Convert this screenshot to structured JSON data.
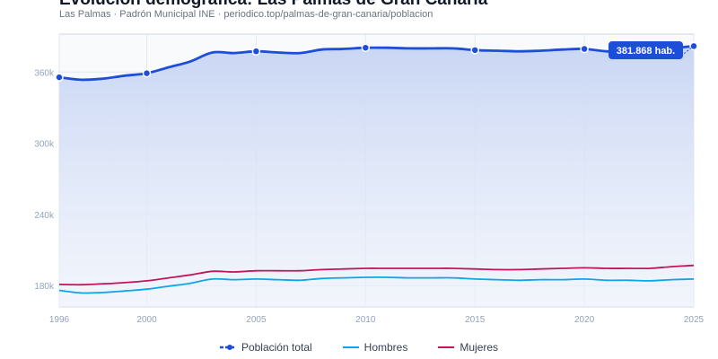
{
  "title": "Evolución demográfica: Las Palmas de Gran Canaria",
  "subtitle": "Las Palmas · Padrón Municipal INE · periodico.top/palmas-de-gran-canaria/poblacion",
  "tooltip": "381.868 hab.",
  "colors": {
    "total": "#1d4ed8",
    "hombres": "#0ea5e9",
    "mujeres": "#be185d",
    "fill": "#c9d6f4",
    "grid": "#e2e8f0",
    "axis": "#94a3b8"
  },
  "chart_data": {
    "type": "line",
    "x": [
      1996,
      1997,
      1998,
      1999,
      2000,
      2001,
      2002,
      2003,
      2004,
      2005,
      2006,
      2007,
      2008,
      2009,
      2010,
      2011,
      2012,
      2013,
      2014,
      2015,
      2016,
      2017,
      2018,
      2019,
      2020,
      2021,
      2022,
      2023,
      2024,
      2025
    ],
    "ylim": [
      162000,
      392000
    ],
    "yticks": [
      180000,
      240000,
      300000,
      360000
    ],
    "ytick_labels": [
      "180k",
      "240k",
      "300k",
      "360k"
    ],
    "xticks": [
      1996,
      2000,
      2005,
      2010,
      2015,
      2020,
      2025
    ],
    "xtick_labels": [
      "1996",
      "2000",
      "2005",
      "2010",
      "2015",
      "2020",
      "2025"
    ],
    "grid": true,
    "legend_position": "bottom",
    "series": [
      {
        "name": "Población total",
        "key": "total",
        "style": "dashed-markers",
        "values": [
          355600,
          353500,
          354500,
          357000,
          359000,
          364000,
          369000,
          376500,
          376000,
          377500,
          376500,
          376000,
          379000,
          379500,
          380500,
          380500,
          380000,
          380000,
          380000,
          378500,
          378000,
          377500,
          378000,
          379000,
          379500,
          377500,
          377500,
          377500,
          380000,
          381868
        ],
        "marker_years": [
          1996,
          2000,
          2005,
          2010,
          2015,
          2020,
          2025
        ]
      },
      {
        "name": "Hombres",
        "key": "hombres",
        "style": "solid",
        "values": [
          176000,
          173800,
          174200,
          175500,
          177000,
          179500,
          182000,
          185500,
          185000,
          185500,
          185000,
          184500,
          186000,
          186500,
          187000,
          187000,
          186500,
          186500,
          186500,
          185500,
          185000,
          184500,
          185000,
          185000,
          185500,
          184500,
          184500,
          184000,
          185000,
          185500
        ]
      },
      {
        "name": "Mujeres",
        "key": "mujeres",
        "style": "solid",
        "values": [
          181000,
          180800,
          181500,
          182500,
          184000,
          186500,
          189000,
          192000,
          191500,
          192500,
          192500,
          192500,
          193500,
          194000,
          194500,
          194500,
          194500,
          194500,
          194500,
          194000,
          193500,
          193500,
          194000,
          194500,
          195000,
          194500,
          194500,
          194500,
          196000,
          197000
        ]
      }
    ]
  }
}
